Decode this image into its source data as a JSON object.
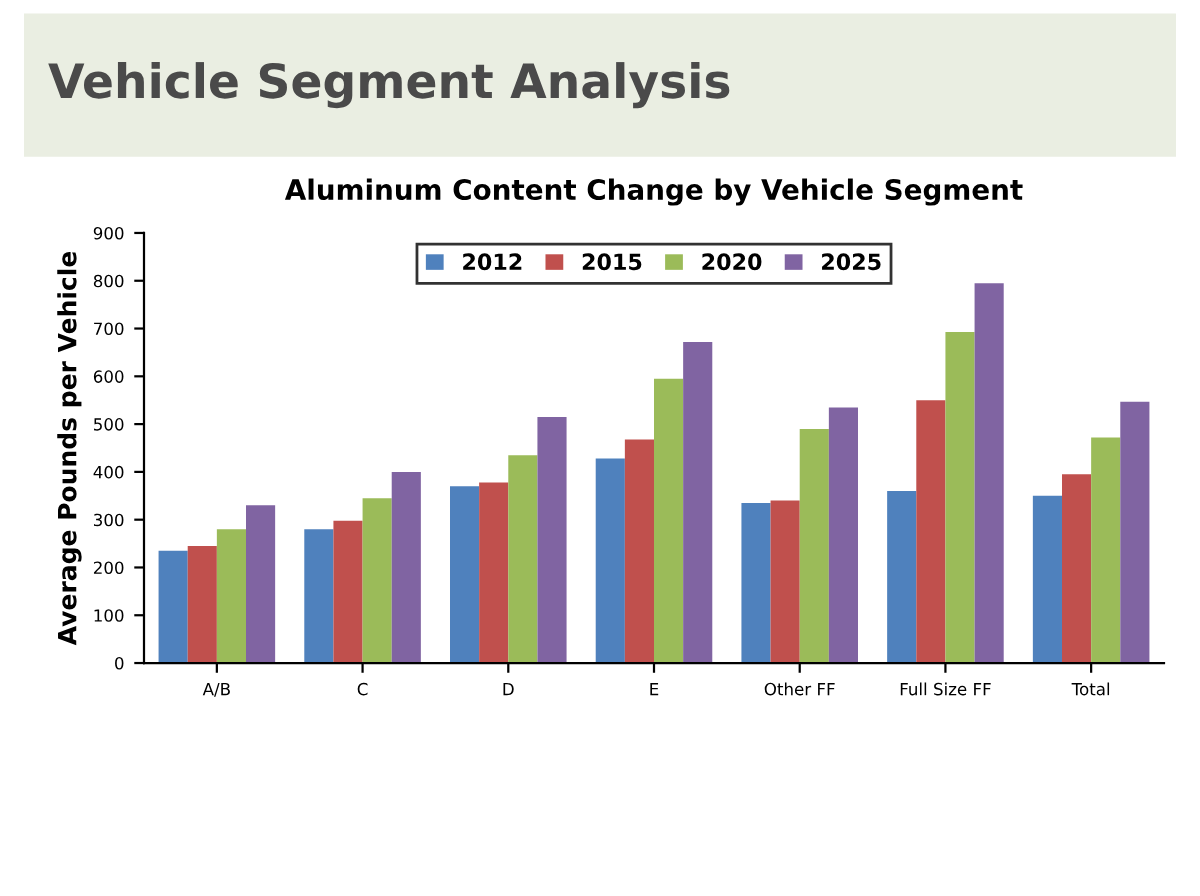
{
  "chart_data": {
    "type": "bar",
    "title": "Vehicle Segment Analysis",
    "subtitle": "Aluminum Content Change by Vehicle Segment",
    "ylabel": "Average Pounds per Vehicle",
    "categories": [
      "A/B",
      "C",
      "D",
      "E",
      "Other FF",
      "Full Size FF",
      "Total"
    ],
    "series": [
      {
        "name": "2012",
        "color": "#4f81bd",
        "values": [
          235,
          280,
          370,
          428,
          335,
          360,
          350
        ]
      },
      {
        "name": "2015",
        "color": "#c0504d",
        "values": [
          245,
          298,
          378,
          468,
          340,
          550,
          395
        ]
      },
      {
        "name": "2020",
        "color": "#9bbb59",
        "values": [
          280,
          345,
          435,
          595,
          490,
          693,
          472
        ]
      },
      {
        "name": "2025",
        "color": "#8064a2",
        "values": [
          330,
          400,
          515,
          672,
          535,
          795,
          547
        ]
      }
    ],
    "ylim": [
      0,
      900
    ],
    "yticks": [
      0,
      100,
      200,
      300,
      400,
      500,
      600,
      700,
      800,
      900
    ],
    "grid": false,
    "legend": "top"
  }
}
